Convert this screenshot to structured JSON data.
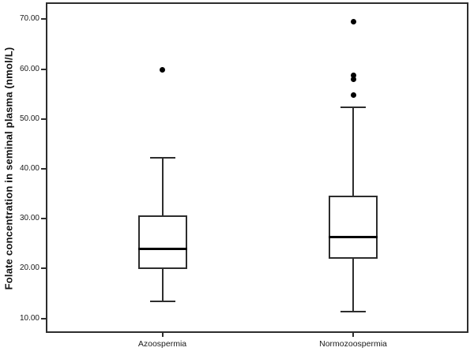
{
  "chart_data": {
    "type": "boxplot",
    "title": "",
    "xlabel": "",
    "ylabel": "Folate concentration in seminal plasma (nmol/L)",
    "ylim": [
      7.1,
      73.4
    ],
    "grid": false,
    "legend": "none",
    "ytick_labels": [
      "70.00",
      "60.00",
      "50.00",
      "40.00",
      "30.00",
      "20.00",
      "10.00"
    ],
    "ytick_values": [
      70,
      60,
      50,
      40,
      30,
      20,
      10
    ],
    "categories": [
      "Azoospermia",
      "Normozoospermia"
    ],
    "series": [
      {
        "name": "Azoospermia",
        "whisker_low": 13.4,
        "q1": 19.9,
        "median": 24.0,
        "q3": 30.7,
        "whisker_high": 42.2,
        "outliers": [
          59.9
        ]
      },
      {
        "name": "Normozoospermia",
        "whisker_low": 11.4,
        "q1": 21.9,
        "median": 26.4,
        "q3": 34.7,
        "whisker_high": 52.4,
        "outliers": [
          54.8,
          57.9,
          58.7,
          69.6
        ]
      }
    ],
    "style": {
      "box_fill": "#ffffff",
      "line_color": "#2d2d2d",
      "median_color": "#000000",
      "outlier_color": "#000000",
      "background": "#ffffff"
    }
  }
}
